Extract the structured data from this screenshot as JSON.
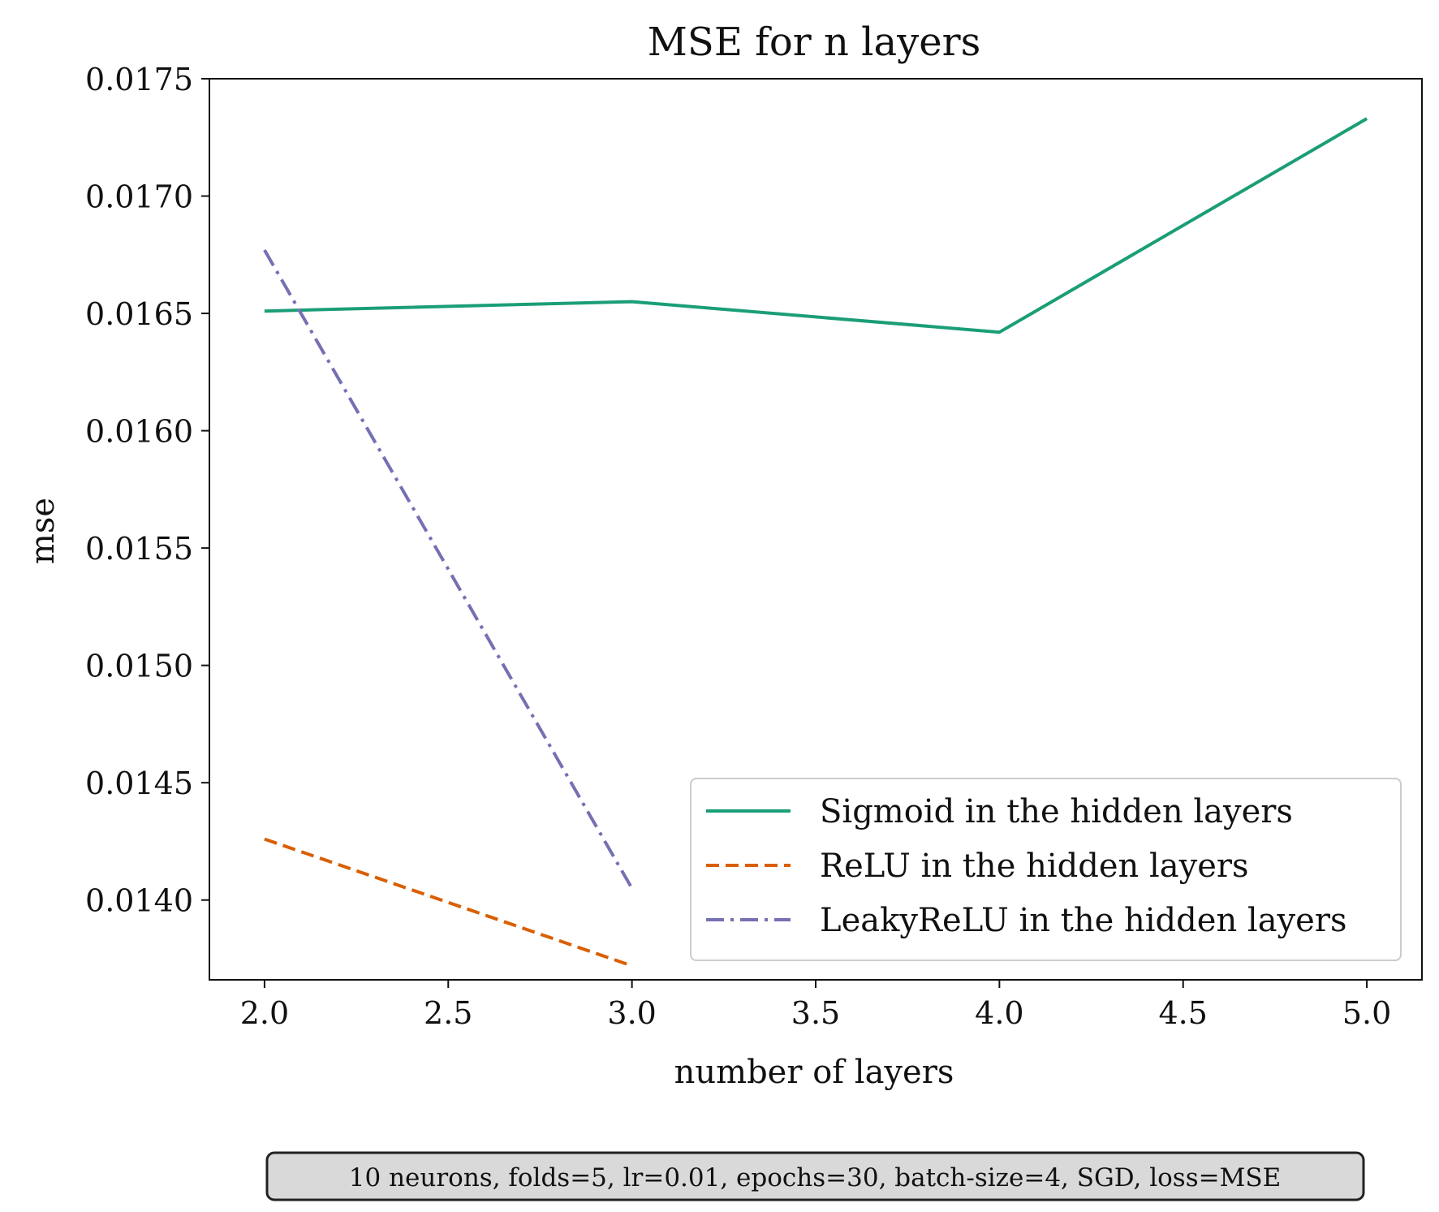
{
  "chart_data": {
    "type": "line",
    "title": "MSE for n layers",
    "xlabel": "number of layers",
    "ylabel": "mse",
    "xlim": [
      1.85,
      5.15
    ],
    "ylim": [
      0.01366,
      0.0175
    ],
    "xticks": [
      2.0,
      2.5,
      3.0,
      3.5,
      4.0,
      4.5,
      5.0
    ],
    "xtick_labels": [
      "2.0",
      "2.5",
      "3.0",
      "3.5",
      "4.0",
      "4.5",
      "5.0"
    ],
    "yticks": [
      0.014,
      0.0145,
      0.015,
      0.0155,
      0.016,
      0.0165,
      0.017,
      0.0175
    ],
    "ytick_labels": [
      "0.0140",
      "0.0145",
      "0.0150",
      "0.0155",
      "0.0160",
      "0.0165",
      "0.0170",
      "0.0175"
    ],
    "grid": false,
    "legend_position": "lower-right",
    "series": [
      {
        "name": "Sigmoid in the hidden layers",
        "color": "#1b9e77",
        "style": "solid",
        "x": [
          2,
          3,
          4,
          5
        ],
        "y": [
          0.01651,
          0.01655,
          0.01642,
          0.01733
        ]
      },
      {
        "name": "ReLU in the hidden layers",
        "color": "#d95f02",
        "style": "dashed",
        "x": [
          2,
          3
        ],
        "y": [
          0.01426,
          0.01372
        ]
      },
      {
        "name": "LeakyReLU in the hidden layers",
        "color": "#7570b3",
        "style": "dashdot",
        "x": [
          2,
          3
        ],
        "y": [
          0.01677,
          0.01405
        ]
      }
    ],
    "annotation": "10 neurons, folds=5, lr=0.01, epochs=30, batch-size=4, SGD, loss=MSE"
  }
}
